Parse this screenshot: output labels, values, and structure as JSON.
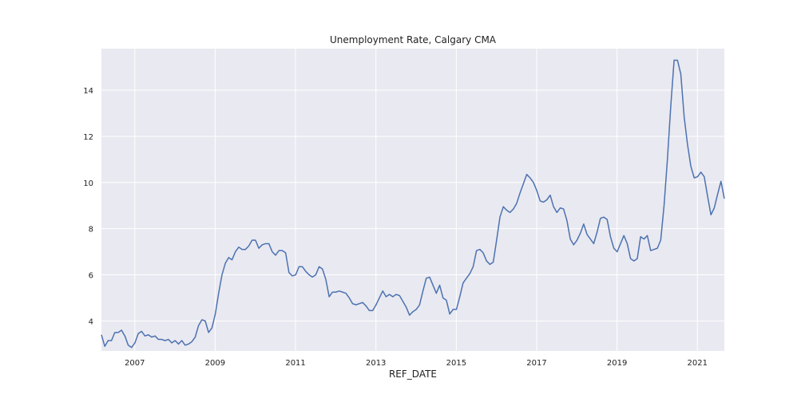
{
  "colors": {
    "plot_background": "#e9e9f1",
    "grid": "#ffffff",
    "line": "#4c72b0"
  },
  "chart_data": {
    "type": "line",
    "title": "Unemployment Rate, Calgary CMA",
    "xlabel": "REF_DATE",
    "ylabel": "",
    "grid": true,
    "xlim": [
      2006.17,
      2021.67
    ],
    "ylim": [
      2.7,
      15.8
    ],
    "x_ticks": [
      2007,
      2009,
      2011,
      2013,
      2015,
      2017,
      2019,
      2021
    ],
    "x_tick_labels": [
      "2007",
      "2009",
      "2011",
      "2013",
      "2015",
      "2017",
      "2019",
      "2021"
    ],
    "y_ticks": [
      4,
      6,
      8,
      10,
      12,
      14
    ],
    "y_tick_labels": [
      "4",
      "6",
      "8",
      "10",
      "12",
      "14"
    ],
    "x_start": 2006.17,
    "x_step_months": 1,
    "series": [
      {
        "name": "Unemployment Rate",
        "values": [
          3.4,
          2.9,
          3.15,
          3.15,
          3.5,
          3.5,
          3.6,
          3.35,
          2.95,
          2.85,
          3.05,
          3.45,
          3.55,
          3.35,
          3.4,
          3.3,
          3.35,
          3.2,
          3.2,
          3.15,
          3.2,
          3.05,
          3.15,
          3.0,
          3.15,
          2.95,
          3.0,
          3.1,
          3.3,
          3.8,
          4.05,
          4.0,
          3.5,
          3.7,
          4.3,
          5.2,
          6.0,
          6.5,
          6.75,
          6.65,
          7.0,
          7.2,
          7.1,
          7.1,
          7.25,
          7.5,
          7.5,
          7.15,
          7.3,
          7.35,
          7.35,
          7.0,
          6.85,
          7.05,
          7.05,
          6.95,
          6.1,
          5.95,
          6.0,
          6.35,
          6.35,
          6.15,
          6.0,
          5.9,
          6.0,
          6.35,
          6.25,
          5.8,
          5.05,
          5.25,
          5.25,
          5.3,
          5.25,
          5.2,
          5.0,
          4.75,
          4.7,
          4.75,
          4.8,
          4.65,
          4.45,
          4.45,
          4.7,
          5.0,
          5.3,
          5.05,
          5.15,
          5.05,
          5.15,
          5.1,
          4.85,
          4.6,
          4.25,
          4.4,
          4.5,
          4.7,
          5.3,
          5.85,
          5.9,
          5.55,
          5.2,
          5.55,
          5.0,
          4.9,
          4.3,
          4.5,
          4.5,
          5.05,
          5.65,
          5.85,
          6.05,
          6.35,
          7.05,
          7.1,
          6.95,
          6.6,
          6.45,
          6.55,
          7.5,
          8.5,
          8.95,
          8.8,
          8.7,
          8.85,
          9.1,
          9.55,
          9.95,
          10.35,
          10.2,
          10.0,
          9.65,
          9.2,
          9.15,
          9.25,
          9.45,
          8.95,
          8.7,
          8.9,
          8.85,
          8.35,
          7.55,
          7.3,
          7.5,
          7.8,
          8.2,
          7.75,
          7.55,
          7.35,
          7.85,
          8.45,
          8.5,
          8.4,
          7.65,
          7.15,
          7.0,
          7.35,
          7.7,
          7.35,
          6.7,
          6.6,
          6.7,
          7.65,
          7.55,
          7.7,
          7.05,
          7.1,
          7.15,
          7.5,
          9.0,
          11.0,
          13.3,
          15.3,
          15.3,
          14.7,
          12.85,
          11.65,
          10.7,
          10.2,
          10.25,
          10.45,
          10.25,
          9.4,
          8.6,
          8.9,
          9.5,
          10.05,
          9.3
        ]
      }
    ]
  }
}
